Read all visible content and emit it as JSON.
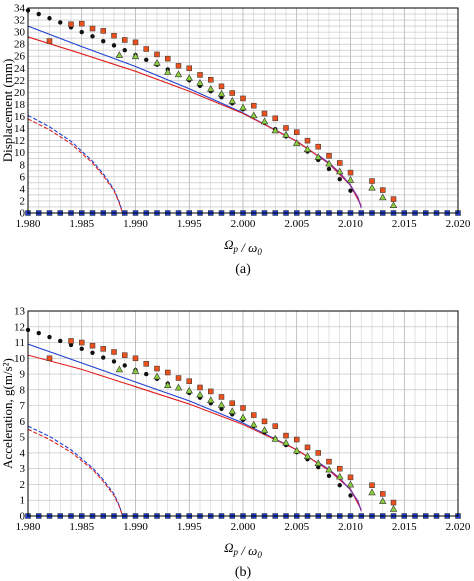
{
  "chart_data": [
    {
      "type": "scatter",
      "panel_caption": "(a)",
      "xlabel": "Ω_p / ω_0",
      "ylabel": "Displacement (mm)",
      "xlim": [
        1.98,
        2.02
      ],
      "ylim": [
        0,
        34
      ],
      "xticks": [
        "1.980",
        "1.985",
        "1.990",
        "1.995",
        "2.000",
        "2.005",
        "2.010",
        "2.015",
        "2.020"
      ],
      "yticks": [
        "0",
        "2",
        "4",
        "6",
        "8",
        "10",
        "12",
        "14",
        "16",
        "18",
        "20",
        "22",
        "24",
        "26",
        "28",
        "30",
        "32",
        "34"
      ],
      "grid": true,
      "series": [
        {
          "kind": "line",
          "style": "solid",
          "color": "#1f3fd0",
          "x": [
            1.98,
            1.985,
            1.99,
            1.995,
            2.0,
            2.005,
            2.008,
            2.01,
            2.011
          ],
          "y": [
            31,
            27.6,
            24.3,
            20.6,
            16.6,
            11.9,
            8.2,
            4.6,
            1.2
          ]
        },
        {
          "kind": "line",
          "style": "solid",
          "color": "#e02020",
          "x": [
            1.98,
            1.985,
            1.99,
            1.995,
            2.0,
            2.005,
            2.008,
            2.01,
            2.011
          ],
          "y": [
            29.2,
            26.4,
            23.5,
            20.2,
            16.5,
            11.9,
            8.2,
            4.6,
            1.2
          ]
        },
        {
          "kind": "line",
          "style": "dashed",
          "color": "#1f3fd0",
          "x": [
            1.98,
            1.982,
            1.984,
            1.986,
            1.987,
            1.988,
            1.9885,
            1.9888
          ],
          "y": [
            16.2,
            14.3,
            11.9,
            8.6,
            6.5,
            3.9,
            1.8,
            0
          ]
        },
        {
          "kind": "line",
          "style": "dashed",
          "color": "#e02020",
          "x": [
            1.98,
            1.982,
            1.984,
            1.986,
            1.987,
            1.988,
            1.9885,
            1.9888
          ],
          "y": [
            15.6,
            13.8,
            11.5,
            8.3,
            6.2,
            3.7,
            1.6,
            0
          ]
        },
        {
          "kind": "line",
          "style": "solid",
          "color": "#7a2fb0",
          "x": [
            2.007,
            2.008,
            2.009,
            2.01,
            2.0107,
            2.011
          ],
          "y": [
            9.6,
            8.3,
            6.7,
            4.6,
            2.6,
            0.8
          ]
        },
        {
          "kind": "line",
          "style": "dashed",
          "color": "#1f3fd0",
          "x": [
            1.98,
            2.02
          ],
          "y": [
            0,
            0
          ]
        },
        {
          "kind": "points",
          "marker": "dot",
          "color": "#111111",
          "x": [
            1.98,
            1.981,
            1.982,
            1.983,
            1.984,
            1.985,
            1.986,
            1.987,
            1.988,
            1.989,
            1.99,
            1.991,
            1.992,
            1.993,
            1.994,
            1.995,
            1.996,
            1.997,
            1.998,
            1.999,
            2.0,
            2.001,
            2.002,
            2.003,
            2.004,
            2.005,
            2.006,
            2.007,
            2.008,
            2.009,
            2.01
          ],
          "y": [
            33.6,
            33.0,
            32.3,
            31.6,
            30.8,
            30.0,
            29.3,
            28.5,
            27.8,
            27.0,
            26.2,
            25.4,
            24.6,
            23.8,
            22.9,
            22.0,
            21.1,
            20.2,
            19.2,
            18.2,
            17.2,
            16.1,
            15.0,
            13.9,
            12.7,
            11.5,
            10.2,
            8.8,
            7.3,
            5.6,
            3.7
          ]
        },
        {
          "kind": "points",
          "marker": "square",
          "color": "#e8501e",
          "x": [
            1.982,
            1.984,
            1.985,
            1.986,
            1.987,
            1.988,
            1.989,
            1.99,
            1.991,
            1.992,
            1.993,
            1.994,
            1.995,
            1.996,
            1.997,
            1.998,
            1.999,
            2.0,
            2.001,
            2.002,
            2.003,
            2.004,
            2.005,
            2.006,
            2.007,
            2.008,
            2.009,
            2.01,
            2.012,
            2.013,
            2.014
          ],
          "y": [
            28.5,
            31.3,
            31.4,
            30.6,
            30.2,
            29.4,
            28.7,
            28.3,
            27.2,
            26.3,
            25.6,
            24.4,
            24.0,
            22.9,
            22.1,
            21.0,
            19.9,
            19.0,
            17.8,
            16.5,
            15.7,
            14.1,
            13.4,
            12.0,
            11.0,
            9.5,
            8.3,
            6.7,
            5.3,
            3.8,
            2.3
          ]
        },
        {
          "kind": "points",
          "marker": "triangle",
          "color": "#8ccf3c",
          "x": [
            1.9885,
            1.99,
            1.992,
            1.993,
            1.994,
            1.995,
            1.996,
            1.997,
            1.998,
            1.999,
            2.0,
            2.001,
            2.002,
            2.003,
            2.004,
            2.005,
            2.006,
            2.007,
            2.008,
            2.009,
            2.01,
            2.012,
            2.013,
            2.014
          ],
          "y": [
            26.2,
            26.0,
            24.9,
            23.4,
            23.0,
            22.4,
            21.6,
            20.6,
            19.8,
            18.6,
            17.5,
            16.2,
            15.2,
            13.7,
            13.0,
            11.6,
            10.6,
            9.3,
            8.2,
            6.9,
            5.5,
            4.2,
            2.6,
            1.3
          ]
        },
        {
          "kind": "points",
          "marker": "square",
          "color": "#1f3fd0",
          "x": [
            1.98,
            1.981,
            1.982,
            1.983,
            1.984,
            1.985,
            1.986,
            1.987,
            1.988,
            1.989,
            1.99,
            1.991,
            1.992,
            1.993,
            1.994,
            1.995,
            1.996,
            1.997,
            1.998,
            1.999,
            2.0,
            2.001,
            2.002,
            2.003,
            2.004,
            2.005,
            2.006,
            2.007,
            2.008,
            2.009,
            2.01,
            2.011,
            2.012,
            2.013,
            2.014,
            2.015,
            2.016,
            2.017,
            2.018,
            2.019,
            2.02
          ],
          "y": [
            0,
            0,
            0,
            0,
            0,
            0,
            0,
            0,
            0,
            0,
            0,
            0,
            0,
            0,
            0,
            0,
            0,
            0,
            0,
            0,
            0,
            0,
            0,
            0,
            0,
            0,
            0,
            0,
            0,
            0,
            0,
            0,
            0,
            0,
            0,
            0,
            0,
            0,
            0,
            0,
            0
          ]
        }
      ]
    },
    {
      "type": "scatter",
      "panel_caption": "(b)",
      "xlabel": "Ω_p / ω_0",
      "ylabel": "Acceleration, g(m/s²)",
      "xlim": [
        1.98,
        2.02
      ],
      "ylim": [
        0,
        13
      ],
      "xticks": [
        "1.980",
        "1.985",
        "1.990",
        "1.995",
        "2.000",
        "2.005",
        "2.010",
        "2.015",
        "2.020"
      ],
      "yticks": [
        "0",
        "1",
        "2",
        "3",
        "4",
        "5",
        "6",
        "7",
        "8",
        "9",
        "10",
        "11",
        "12",
        "13"
      ],
      "grid": true,
      "series": [
        {
          "kind": "line",
          "style": "solid",
          "color": "#1f3fd0",
          "x": [
            1.98,
            1.985,
            1.99,
            1.995,
            2.0,
            2.005,
            2.008,
            2.01,
            2.011
          ],
          "y": [
            10.9,
            9.7,
            8.5,
            7.3,
            5.9,
            4.2,
            2.9,
            1.7,
            0.4
          ]
        },
        {
          "kind": "line",
          "style": "solid",
          "color": "#e02020",
          "x": [
            1.98,
            1.985,
            1.99,
            1.995,
            2.0,
            2.005,
            2.008,
            2.01,
            2.011
          ],
          "y": [
            10.2,
            9.3,
            8.2,
            7.1,
            5.8,
            4.2,
            2.9,
            1.7,
            0.4
          ]
        },
        {
          "kind": "line",
          "style": "dashed",
          "color": "#1f3fd0",
          "x": [
            1.98,
            1.982,
            1.984,
            1.986,
            1.987,
            1.988,
            1.9885,
            1.9888
          ],
          "y": [
            5.7,
            5.05,
            4.2,
            3.05,
            2.3,
            1.4,
            0.65,
            0
          ]
        },
        {
          "kind": "line",
          "style": "dashed",
          "color": "#e02020",
          "x": [
            1.98,
            1.982,
            1.984,
            1.986,
            1.987,
            1.988,
            1.9885,
            1.9888
          ],
          "y": [
            5.5,
            4.85,
            4.05,
            2.95,
            2.2,
            1.3,
            0.6,
            0
          ]
        },
        {
          "kind": "line",
          "style": "solid",
          "color": "#7a2fb0",
          "x": [
            2.007,
            2.008,
            2.009,
            2.01,
            2.0107,
            2.011
          ],
          "y": [
            3.4,
            2.95,
            2.4,
            1.65,
            0.95,
            0.3
          ]
        },
        {
          "kind": "line",
          "style": "dashed",
          "color": "#1f3fd0",
          "x": [
            1.98,
            2.02
          ],
          "y": [
            0,
            0
          ]
        },
        {
          "kind": "points",
          "marker": "dot",
          "color": "#111111",
          "x": [
            1.98,
            1.981,
            1.982,
            1.983,
            1.984,
            1.985,
            1.986,
            1.987,
            1.988,
            1.989,
            1.99,
            1.991,
            1.992,
            1.993,
            1.994,
            1.995,
            1.996,
            1.997,
            1.998,
            1.999,
            2.0,
            2.001,
            2.002,
            2.003,
            2.004,
            2.005,
            2.006,
            2.007,
            2.008,
            2.009,
            2.01
          ],
          "y": [
            11.8,
            11.6,
            11.35,
            11.1,
            10.85,
            10.6,
            10.35,
            10.05,
            9.8,
            9.55,
            9.25,
            9.0,
            8.7,
            8.4,
            8.1,
            7.8,
            7.5,
            7.15,
            6.8,
            6.45,
            6.1,
            5.7,
            5.3,
            4.9,
            4.5,
            4.05,
            3.6,
            3.1,
            2.55,
            1.95,
            1.3
          ]
        },
        {
          "kind": "points",
          "marker": "square",
          "color": "#e8501e",
          "x": [
            1.982,
            1.984,
            1.985,
            1.986,
            1.987,
            1.988,
            1.989,
            1.99,
            1.991,
            1.992,
            1.993,
            1.994,
            1.995,
            1.996,
            1.997,
            1.998,
            1.999,
            2.0,
            2.001,
            2.002,
            2.003,
            2.004,
            2.005,
            2.006,
            2.007,
            2.008,
            2.009,
            2.01,
            2.012,
            2.013,
            2.014
          ],
          "y": [
            10.0,
            11.1,
            11.0,
            10.8,
            10.6,
            10.4,
            10.2,
            10.0,
            9.65,
            9.35,
            9.1,
            8.75,
            8.55,
            8.15,
            7.9,
            7.55,
            7.15,
            6.85,
            6.4,
            6.0,
            5.7,
            5.1,
            4.85,
            4.35,
            4.0,
            3.45,
            3.0,
            2.45,
            1.95,
            1.4,
            0.85
          ]
        },
        {
          "kind": "points",
          "marker": "triangle",
          "color": "#8ccf3c",
          "x": [
            1.9885,
            1.99,
            1.992,
            1.993,
            1.994,
            1.995,
            1.996,
            1.997,
            1.998,
            1.999,
            2.0,
            2.001,
            2.002,
            2.003,
            2.004,
            2.005,
            2.006,
            2.007,
            2.008,
            2.009,
            2.01,
            2.012,
            2.013,
            2.014
          ],
          "y": [
            9.3,
            9.2,
            8.85,
            8.3,
            8.15,
            7.95,
            7.7,
            7.35,
            7.05,
            6.65,
            6.25,
            5.8,
            5.45,
            4.9,
            4.65,
            4.15,
            3.8,
            3.35,
            2.95,
            2.5,
            2.0,
            1.5,
            0.95,
            0.45
          ]
        },
        {
          "kind": "points",
          "marker": "square",
          "color": "#1f3fd0",
          "x": [
            1.98,
            1.981,
            1.982,
            1.983,
            1.984,
            1.985,
            1.986,
            1.987,
            1.988,
            1.989,
            1.99,
            1.991,
            1.992,
            1.993,
            1.994,
            1.995,
            1.996,
            1.997,
            1.998,
            1.999,
            2.0,
            2.001,
            2.002,
            2.003,
            2.004,
            2.005,
            2.006,
            2.007,
            2.008,
            2.009,
            2.01,
            2.011,
            2.012,
            2.013,
            2.014,
            2.015,
            2.016,
            2.017,
            2.018,
            2.019,
            2.02
          ],
          "y": [
            0,
            0,
            0,
            0,
            0,
            0,
            0,
            0,
            0,
            0,
            0,
            0,
            0,
            0,
            0,
            0,
            0,
            0,
            0,
            0,
            0,
            0,
            0,
            0,
            0,
            0,
            0,
            0,
            0,
            0,
            0,
            0,
            0,
            0,
            0,
            0,
            0,
            0,
            0,
            0,
            0
          ]
        }
      ]
    }
  ]
}
